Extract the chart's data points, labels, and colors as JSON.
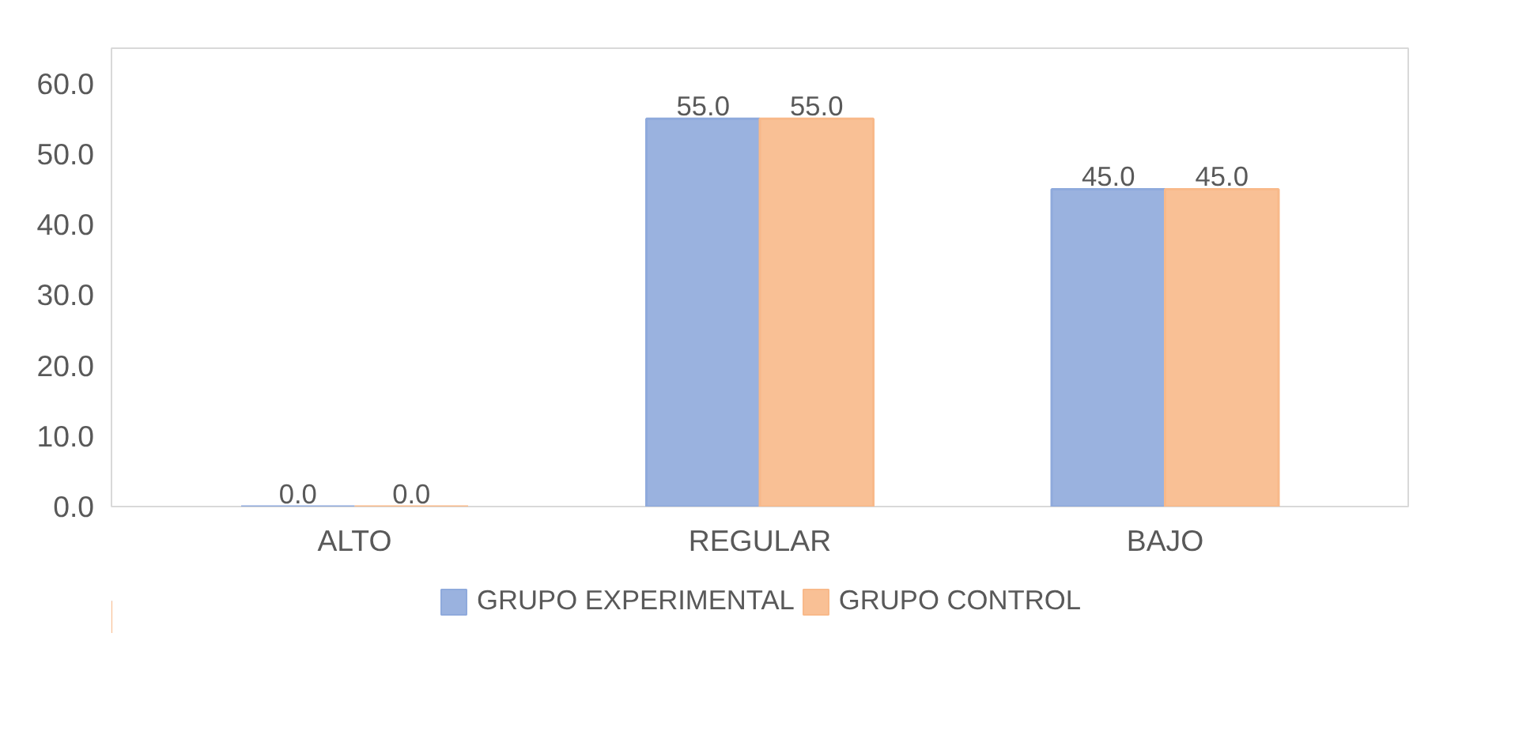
{
  "chart_data": {
    "type": "bar",
    "categories": [
      "ALTO",
      "REGULAR",
      "BAJO"
    ],
    "series": [
      {
        "name": "GRUPO EXPERIMENTAL",
        "color": "#8faadc",
        "values": [
          0,
          55,
          45
        ],
        "value_labels": [
          "0.0",
          "55.0",
          "45.0"
        ]
      },
      {
        "name": "GRUPO CONTROL",
        "color": "#f8b98a",
        "values": [
          0,
          55,
          45
        ],
        "value_labels": [
          "0.0",
          "55.0",
          "45.0"
        ]
      }
    ],
    "ylim": [
      0,
      65
    ],
    "yticks": [
      {
        "value": 0,
        "label": "0.0"
      },
      {
        "value": 10,
        "label": "10.0"
      },
      {
        "value": 20,
        "label": "20.0"
      },
      {
        "value": 30,
        "label": "30.0"
      },
      {
        "value": 40,
        "label": "40.0"
      },
      {
        "value": 50,
        "label": "50.0"
      },
      {
        "value": 60,
        "label": "60.0"
      }
    ],
    "grid": false,
    "legend": "bottom"
  }
}
